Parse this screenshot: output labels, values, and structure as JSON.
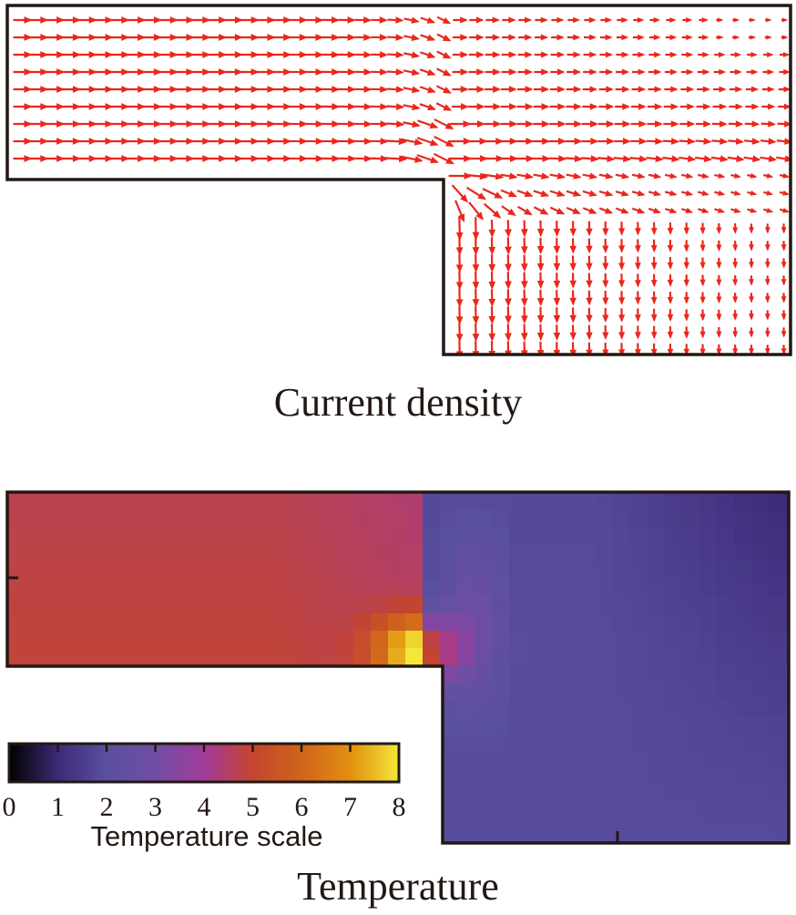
{
  "chart_data": [
    {
      "type": "vector-field",
      "title": "Current density",
      "domain": "L-shaped conductor (horizontal arm joined to a vertical arm at the right)",
      "arrow_color": "#e8281e",
      "flow": "enters from the left through the horizontal arm, turns around the inner corner and exits downward through the vertical arm",
      "annotation": "arrows crowd and lengthen near the re-entrant inner corner"
    },
    {
      "type": "heatmap",
      "title": "Temperature",
      "colorbar": {
        "label": "Temperature scale",
        "ticks": [
          "0",
          "1",
          "2",
          "3",
          "4",
          "5",
          "6",
          "7",
          "8"
        ],
        "range": [
          0,
          8
        ],
        "colormap": [
          "#000000",
          "#3d2a78",
          "#5a50a0",
          "#6f4ea5",
          "#a23b9a",
          "#c4452f",
          "#d0641c",
          "#e28f10",
          "#f3e838"
        ]
      },
      "regions": [
        {
          "region": "horizontal arm",
          "approx_value": 4.7
        },
        {
          "region": "inner corner hot spot",
          "approx_value": 8.0
        },
        {
          "region": "vertical arm",
          "approx_value": 1.8
        },
        {
          "region": "upper-right outer corner",
          "approx_value": 0.6
        }
      ]
    }
  ]
}
